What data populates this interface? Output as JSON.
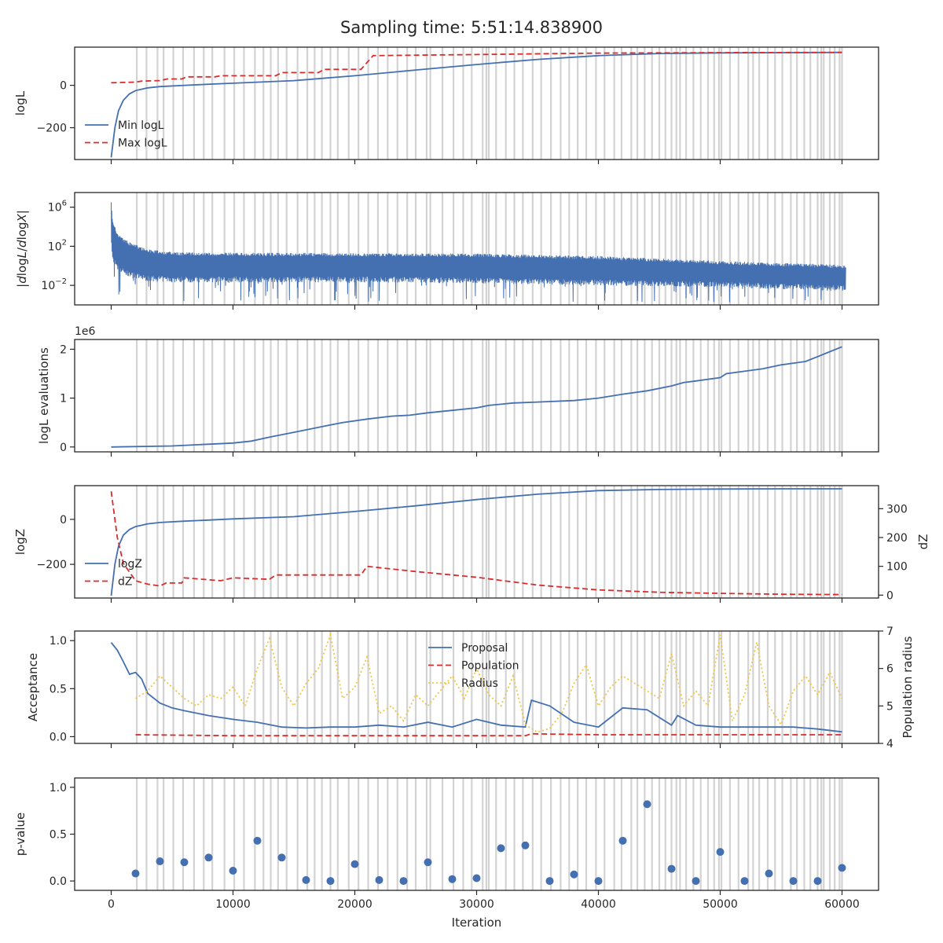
{
  "figure": {
    "title": "Sampling time: 5:51:14.838900"
  },
  "colors": {
    "blue": "#4470b1",
    "red": "#d62d2d",
    "yellow": "#f2c53d",
    "grid_line": "#d3d3d3",
    "axes": "#262626"
  },
  "chart_data": [
    {
      "type": "line",
      "title": "",
      "xlabel": "",
      "ylabel": "logL",
      "xlim": [
        -3000,
        63000
      ],
      "ylim": [
        -350,
        180
      ],
      "yticks": [
        {
          "v": 0,
          "t": "0"
        },
        {
          "v": -200,
          "t": "−200"
        }
      ],
      "legend": "lower-left",
      "series": [
        {
          "name": "Min logL",
          "color": "blue",
          "dash": "",
          "x": [
            0,
            300,
            600,
            1000,
            1500,
            2000,
            3000,
            4000,
            6000,
            8000,
            10000,
            15000,
            20000,
            25000,
            30000,
            35000,
            40000,
            45000,
            50000,
            55000,
            60000
          ],
          "y": [
            -340,
            -200,
            -120,
            -70,
            -40,
            -25,
            -12,
            -6,
            0,
            5,
            10,
            22,
            45,
            72,
            98,
            122,
            140,
            150,
            153,
            154,
            155
          ]
        },
        {
          "name": "Max logL",
          "color": "red",
          "dash": "7,4",
          "x": [
            0,
            2000,
            2500,
            4000,
            4600,
            5800,
            6200,
            8500,
            9000,
            13500,
            14000,
            17000,
            17500,
            20500,
            21500,
            30000,
            40000,
            50000,
            60000
          ],
          "y": [
            12,
            15,
            20,
            22,
            30,
            30,
            40,
            40,
            45,
            45,
            60,
            60,
            75,
            75,
            140,
            145,
            152,
            154,
            155
          ]
        }
      ]
    },
    {
      "type": "line",
      "title": "",
      "xlabel": "",
      "ylabel": "|dlogL/dlogX|",
      "xlim": [
        -3000,
        63000
      ],
      "ylim": [
        -4,
        7.5
      ],
      "log_scale": true,
      "yticks": [
        {
          "v": 6,
          "t": "10^6"
        },
        {
          "v": 2,
          "t": "10^2"
        },
        {
          "v": -2,
          "t": "10^-2"
        }
      ],
      "legend": "none",
      "series": [
        {
          "name": "",
          "color": "blue",
          "dash": "",
          "envelope_x": [
            0,
            100,
            500,
            1500,
            3000,
            5000,
            10000,
            20000,
            30000,
            40000,
            50000,
            55000,
            60000
          ],
          "envelope_top": [
            6.5,
            4.8,
            3.3,
            2.4,
            1.7,
            1.4,
            1.35,
            1.3,
            1.25,
            1.0,
            0.5,
            0.3,
            0.1
          ],
          "envelope_bottom": [
            2.2,
            0.5,
            -0.5,
            -1.2,
            -1.6,
            -1.7,
            -1.7,
            -1.7,
            -1.8,
            -2.0,
            -2.2,
            -2.4,
            -2.6
          ],
          "spike_min": -3.8
        }
      ]
    },
    {
      "type": "line",
      "title": "",
      "xlabel": "",
      "ylabel": "logL evaluations",
      "offset_label": "1e6",
      "xlim": [
        -3000,
        63000
      ],
      "ylim": [
        -0.1,
        2.2
      ],
      "yticks": [
        {
          "v": 0,
          "t": "0"
        },
        {
          "v": 1,
          "t": "1"
        },
        {
          "v": 2,
          "t": "2"
        }
      ],
      "legend": "none",
      "series": [
        {
          "name": "",
          "color": "blue",
          "dash": "",
          "x": [
            0,
            5000,
            10000,
            11500,
            13000,
            15000,
            16000,
            18000,
            19000,
            21000,
            23000,
            24500,
            26000,
            28000,
            30000,
            31000,
            33000,
            35000,
            38000,
            40000,
            42000,
            44000,
            46000,
            47000,
            48000,
            50000,
            50500,
            52000,
            53500,
            55000,
            57000,
            58000,
            59000,
            60000
          ],
          "y": [
            0,
            0.02,
            0.08,
            0.12,
            0.2,
            0.3,
            0.35,
            0.45,
            0.5,
            0.57,
            0.63,
            0.65,
            0.7,
            0.75,
            0.8,
            0.85,
            0.9,
            0.92,
            0.95,
            1.0,
            1.08,
            1.15,
            1.25,
            1.32,
            1.35,
            1.42,
            1.5,
            1.55,
            1.6,
            1.68,
            1.75,
            1.85,
            1.95,
            2.05
          ]
        }
      ]
    },
    {
      "type": "line",
      "title": "",
      "xlabel": "",
      "ylabel": "logZ",
      "ylabel_right": "dZ",
      "xlim": [
        -3000,
        63000
      ],
      "ylim": [
        -350,
        150
      ],
      "ylim_right": [
        -10,
        380
      ],
      "yticks": [
        {
          "v": 0,
          "t": "0"
        },
        {
          "v": -200,
          "t": "−200"
        }
      ],
      "yticks_right": [
        {
          "v": 0,
          "t": "0"
        },
        {
          "v": 100,
          "t": "100"
        },
        {
          "v": 200,
          "t": "200"
        },
        {
          "v": 300,
          "t": "300"
        }
      ],
      "legend": "lower-left",
      "series": [
        {
          "name": "logZ",
          "color": "blue",
          "dash": "",
          "axis": "left",
          "x": [
            0,
            300,
            600,
            1000,
            1500,
            2000,
            3000,
            4000,
            6000,
            8000,
            10000,
            15000,
            20000,
            25000,
            30000,
            35000,
            40000,
            45000,
            50000,
            55000,
            60000
          ],
          "y": [
            -340,
            -200,
            -120,
            -70,
            -45,
            -32,
            -20,
            -14,
            -8,
            -3,
            2,
            12,
            35,
            60,
            88,
            112,
            128,
            133,
            135,
            136,
            136
          ]
        },
        {
          "name": "dZ",
          "color": "red",
          "dash": "7,4",
          "axis": "right",
          "x": [
            0,
            500,
            1000,
            2000,
            3000,
            4000,
            4500,
            5800,
            6000,
            9000,
            10000,
            13000,
            13500,
            20500,
            21000,
            25000,
            30000,
            35000,
            40000,
            45000,
            50000,
            55000,
            60000
          ],
          "y": [
            360,
            200,
            110,
            50,
            38,
            32,
            42,
            42,
            60,
            50,
            60,
            55,
            70,
            70,
            100,
            82,
            62,
            35,
            18,
            10,
            6,
            3,
            2
          ]
        }
      ]
    },
    {
      "type": "line",
      "title": "",
      "xlabel": "",
      "ylabel": "Acceptance",
      "ylabel_right": "Population radius",
      "xlim": [
        -3000,
        63000
      ],
      "ylim": [
        -0.07,
        1.1
      ],
      "ylim_right": [
        4,
        7
      ],
      "yticks": [
        {
          "v": 0,
          "t": "0.0"
        },
        {
          "v": 0.5,
          "t": "0.5"
        },
        {
          "v": 1,
          "t": "1.0"
        }
      ],
      "yticks_right": [
        {
          "v": 4,
          "t": "4"
        },
        {
          "v": 5,
          "t": "5"
        },
        {
          "v": 6,
          "t": "6"
        },
        {
          "v": 7,
          "t": "7"
        }
      ],
      "legend": "top-center",
      "series": [
        {
          "name": "Proposal",
          "color": "blue",
          "dash": "",
          "axis": "left",
          "x": [
            0,
            500,
            1000,
            1500,
            2000,
            2500,
            3000,
            4000,
            5000,
            6000,
            8000,
            10000,
            12000,
            14000,
            16000,
            18000,
            20000,
            22000,
            24000,
            26000,
            28000,
            30000,
            32000,
            34000,
            34500,
            36000,
            38000,
            40000,
            42000,
            44000,
            46000,
            46500,
            48000,
            50000,
            52000,
            54000,
            56000,
            58000,
            60000
          ],
          "y": [
            0.98,
            0.9,
            0.78,
            0.65,
            0.67,
            0.6,
            0.45,
            0.35,
            0.3,
            0.27,
            0.22,
            0.18,
            0.15,
            0.1,
            0.09,
            0.1,
            0.1,
            0.12,
            0.1,
            0.15,
            0.1,
            0.18,
            0.12,
            0.1,
            0.38,
            0.32,
            0.15,
            0.1,
            0.3,
            0.28,
            0.12,
            0.22,
            0.12,
            0.1,
            0.1,
            0.1,
            0.1,
            0.08,
            0.05
          ]
        },
        {
          "name": "Population",
          "color": "red",
          "dash": "7,4",
          "axis": "left",
          "x": [
            2000,
            10000,
            20000,
            30000,
            34000,
            34500,
            40000,
            50000,
            60000
          ],
          "y": [
            0.02,
            0.01,
            0.01,
            0.01,
            0.01,
            0.03,
            0.02,
            0.02,
            0.02
          ]
        },
        {
          "name": "Radius",
          "color": "yellow",
          "dash": "2,3",
          "axis": "right",
          "x": [
            2000,
            3000,
            4000,
            5000,
            6000,
            7000,
            8000,
            9000,
            10000,
            11000,
            12000,
            13000,
            14000,
            15000,
            16000,
            17000,
            18000,
            19000,
            20000,
            21000,
            22000,
            23000,
            24000,
            25000,
            26000,
            27000,
            28000,
            29000,
            30000,
            31000,
            32000,
            33000,
            34000,
            35000,
            36000,
            37000,
            38000,
            39000,
            40000,
            41000,
            42000,
            43000,
            44000,
            45000,
            46000,
            47000,
            48000,
            49000,
            50000,
            51000,
            52000,
            53000,
            54000,
            55000,
            56000,
            57000,
            58000,
            59000,
            60000
          ],
          "y": [
            5.2,
            5.4,
            5.8,
            5.5,
            5.2,
            5.0,
            5.3,
            5.2,
            5.5,
            5.0,
            6.0,
            6.8,
            5.5,
            5.0,
            5.6,
            6.0,
            6.9,
            5.2,
            5.5,
            6.3,
            4.8,
            5.0,
            4.6,
            5.3,
            5.0,
            5.4,
            5.8,
            5.2,
            6.0,
            5.3,
            5.0,
            5.8,
            4.5,
            4.3,
            4.4,
            4.8,
            5.6,
            6.1,
            5.0,
            5.5,
            5.8,
            5.6,
            5.4,
            5.2,
            6.4,
            5.0,
            5.4,
            5.0,
            6.9,
            4.6,
            5.3,
            6.7,
            5.0,
            4.5,
            5.4,
            5.8,
            5.3,
            5.9,
            5.2
          ]
        }
      ]
    },
    {
      "type": "scatter",
      "title": "",
      "xlabel": "Iteration",
      "ylabel": "p-value",
      "xlim": [
        -3000,
        63000
      ],
      "ylim": [
        -0.1,
        1.1
      ],
      "yticks": [
        {
          "v": 0,
          "t": "0.0"
        },
        {
          "v": 0.5,
          "t": "0.5"
        },
        {
          "v": 1,
          "t": "1.0"
        }
      ],
      "xticks": [
        {
          "v": 0,
          "t": "0"
        },
        {
          "v": 10000,
          "t": "10000"
        },
        {
          "v": 20000,
          "t": "20000"
        },
        {
          "v": 30000,
          "t": "30000"
        },
        {
          "v": 40000,
          "t": "40000"
        },
        {
          "v": 50000,
          "t": "50000"
        },
        {
          "v": 60000,
          "t": "60000"
        }
      ],
      "legend": "none",
      "series": [
        {
          "name": "",
          "color": "blue",
          "x": [
            2000,
            4000,
            6000,
            8000,
            10000,
            12000,
            14000,
            16000,
            18000,
            20000,
            22000,
            24000,
            26000,
            28000,
            30000,
            32000,
            34000,
            36000,
            38000,
            40000,
            42000,
            44000,
            46000,
            48000,
            50000,
            52000,
            54000,
            56000,
            58000,
            60000
          ],
          "y": [
            0.08,
            0.21,
            0.2,
            0.25,
            0.11,
            0.43,
            0.25,
            0.01,
            0.0,
            0.18,
            0.01,
            0.0,
            0.2,
            0.02,
            0.03,
            0.35,
            0.38,
            0.0,
            0.07,
            0.0,
            0.43,
            0.82,
            0.13,
            0.0,
            0.31,
            0.0,
            0.08,
            0.0,
            0.0,
            0.14
          ]
        }
      ]
    }
  ],
  "gray_lines": [
    2100,
    2900,
    3800,
    4300,
    5100,
    5900,
    6800,
    7600,
    8300,
    9300,
    10100,
    10900,
    11800,
    12500,
    13100,
    13700,
    14400,
    15300,
    16100,
    16700,
    17300,
    18000,
    18600,
    19500,
    20300,
    21100,
    21900,
    22700,
    23500,
    24300,
    25000,
    25900,
    26200,
    27200,
    28100,
    28900,
    29600,
    30500,
    30800,
    31000,
    31600,
    32400,
    33100,
    33800,
    34600,
    35300,
    36100,
    36900,
    37600,
    38300,
    39000,
    39800,
    40500,
    41300,
    41900,
    42700,
    43200,
    43800,
    44400,
    45000,
    45500,
    46000,
    46400,
    46700,
    47200,
    47800,
    48400,
    49000,
    49500,
    49900,
    50100,
    50800,
    51500,
    52300,
    52700,
    53200,
    53900,
    54500,
    55100,
    55800,
    56300,
    56900,
    57400,
    58000,
    58300,
    58500,
    59000,
    59400,
    59800,
    60000
  ]
}
